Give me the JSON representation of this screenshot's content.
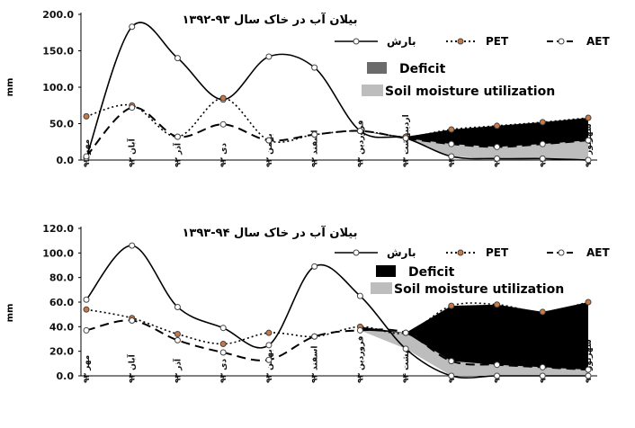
{
  "chart_data": [
    {
      "type": "line",
      "title": "بیلان آب در خاک سال ۹۳-۱۳۹۲",
      "ylabel": "mm",
      "ylim": [
        0,
        200
      ],
      "yticks": [
        "0.0",
        "50.0",
        "100.0",
        "150.0",
        "200.0"
      ],
      "categories": [
        "مهر ۹۲",
        "آبان ۹۲",
        "آذر ۹۲",
        "دی ۹۲",
        "بهمن ۹۲",
        "اسفند ۹۲",
        "فروردین ۹۳",
        "اردیبهشت ۹۳",
        "خرداد ۹۳",
        "تیر ۹۳",
        "مرداد ۹۳",
        "شهریور ۹۳"
      ],
      "series": [
        {
          "name": "بارش",
          "style": "solid",
          "marker": "#ffffff",
          "values": [
            3,
            183,
            140,
            83,
            142,
            127,
            40,
            30,
            5,
            2,
            2,
            0
          ]
        },
        {
          "name": "PET",
          "style": "dotted",
          "marker": "#c87945",
          "values": [
            60,
            75,
            32,
            85,
            27,
            35,
            40,
            32,
            42,
            47,
            52,
            58
          ]
        },
        {
          "name": "AET",
          "style": "dashed",
          "marker": "#ffffff",
          "values": [
            5,
            72,
            32,
            49,
            27,
            35,
            40,
            30,
            22,
            18,
            22,
            27
          ]
        }
      ],
      "areas": [
        {
          "name": "Deficit",
          "color": "#000000"
        },
        {
          "name": "Soil moisture utilization",
          "color": "#bdbdbd"
        }
      ],
      "deficit_from_index": 6
    },
    {
      "type": "line",
      "title": "بیلان آب در خاک سال ۹۴-۱۳۹۳",
      "ylabel": "mm",
      "ylim": [
        0,
        120
      ],
      "yticks": [
        "0.0",
        "20.0",
        "40.0",
        "60.0",
        "80.0",
        "100.0",
        "120.0"
      ],
      "categories": [
        "مهر ۹۳",
        "آبان ۹۳",
        "آذر ۹۳",
        "دی ۹۳",
        "بهمن ۹۳",
        "اسفند ۹۳",
        "فروردین ۹۳",
        "اردیبهشت ۹۴",
        "خرداد ۹۴",
        "تیر ۹۴",
        "مرداد ۹۴",
        "شهریور ۹۴"
      ],
      "series": [
        {
          "name": "بارش",
          "style": "solid",
          "marker": "#ffffff",
          "values": [
            62,
            106,
            56,
            39,
            25,
            89,
            65,
            22,
            0,
            0,
            0,
            0
          ]
        },
        {
          "name": "PET",
          "style": "dotted",
          "marker": "#c87945",
          "values": [
            54,
            47,
            34,
            26,
            35,
            32,
            40,
            35,
            57,
            58,
            52,
            60
          ]
        },
        {
          "name": "AET",
          "style": "dashed",
          "marker": "#ffffff",
          "values": [
            37,
            45,
            29,
            19,
            13,
            32,
            37,
            35,
            12,
            9,
            7,
            5
          ]
        }
      ],
      "areas": [
        {
          "name": "Deficit",
          "color": "#000000"
        },
        {
          "name": "Soil moisture utilization",
          "color": "#bdbdbd"
        }
      ],
      "deficit_from_index": 6
    }
  ]
}
